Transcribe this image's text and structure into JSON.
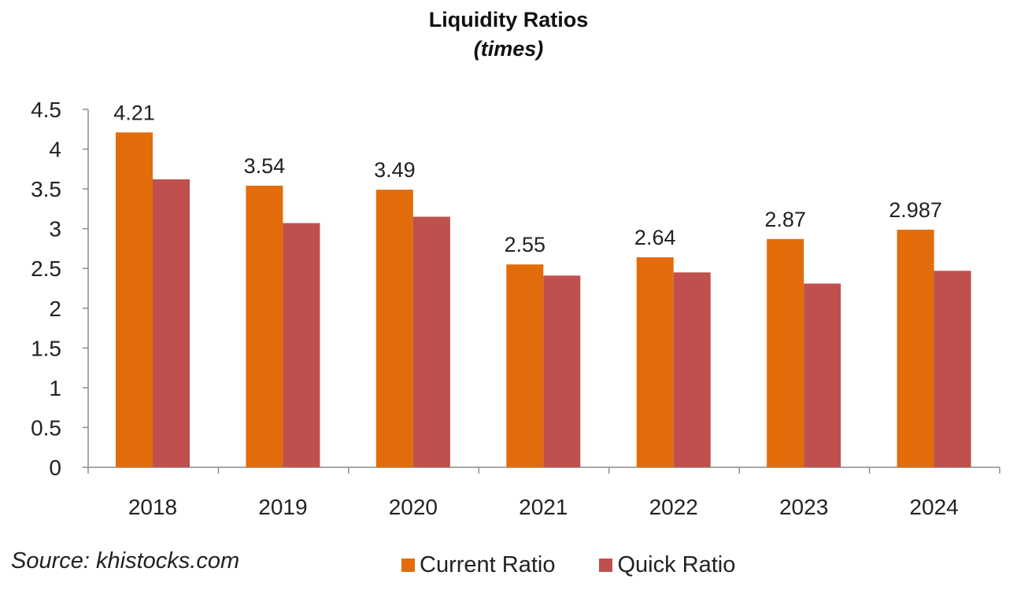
{
  "chart_data": {
    "type": "bar",
    "title": "Liquidity Ratios",
    "subtitle": "(times)",
    "categories": [
      "2018",
      "2019",
      "2020",
      "2021",
      "2022",
      "2023",
      "2024"
    ],
    "series": [
      {
        "name": "Current Ratio",
        "color": "#E36C0A",
        "values": [
          4.21,
          3.54,
          3.49,
          2.55,
          2.64,
          2.87,
          2.987
        ],
        "data_labels": [
          "4.21",
          "3.54",
          "3.49",
          "2.55",
          "2.64",
          "2.87",
          "2.987"
        ]
      },
      {
        "name": "Quick Ratio",
        "color": "#C0504D",
        "values": [
          3.62,
          3.07,
          3.15,
          2.41,
          2.45,
          2.31,
          2.47
        ]
      }
    ],
    "y_ticks": [
      "0",
      "0.5",
      "1",
      "1.5",
      "2",
      "2.5",
      "3",
      "3.5",
      "4",
      "4.5"
    ],
    "ylim": [
      0,
      4.5
    ],
    "grid": false,
    "legend_position": "bottom",
    "source": "Source: khistocks.com"
  }
}
